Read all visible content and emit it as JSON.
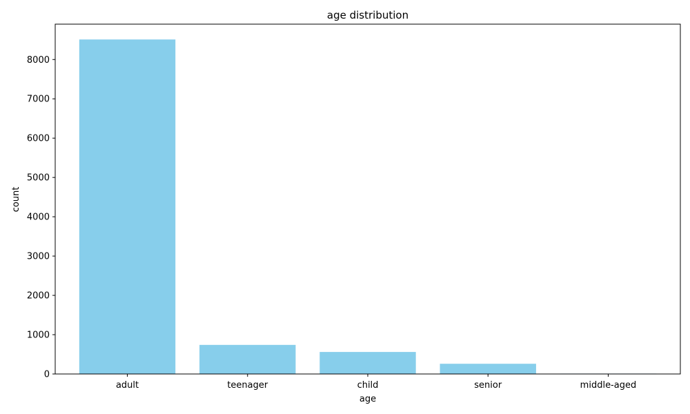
{
  "chart_data": {
    "type": "bar",
    "title": "age distribution",
    "xlabel": "age",
    "ylabel": "count",
    "categories": [
      "adult",
      "teenager",
      "child",
      "senior",
      "middle-aged"
    ],
    "values": [
      8510,
      740,
      560,
      260,
      10
    ],
    "ylim": [
      0,
      8900
    ],
    "yticks": [
      0,
      1000,
      2000,
      3000,
      4000,
      5000,
      6000,
      7000,
      8000
    ],
    "bar_color": "#87CEEB",
    "grid": false,
    "legend": "none"
  }
}
